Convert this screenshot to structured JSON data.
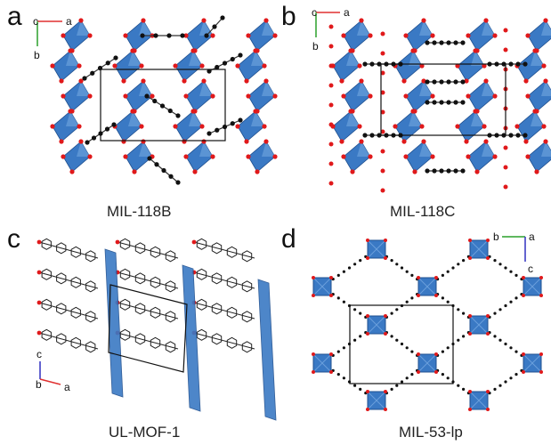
{
  "panels": [
    {
      "letter": "a",
      "name": "MIL-118B",
      "axes": {
        "first": "c",
        "second": "a",
        "third": "b"
      }
    },
    {
      "letter": "b",
      "name": "MIL-118C",
      "axes": {
        "first": "c",
        "second": "a",
        "third": "b"
      }
    },
    {
      "letter": "c",
      "name": "UL-MOF-1",
      "axes": {
        "first": "c",
        "second": "b",
        "third": "a"
      }
    },
    {
      "letter": "d",
      "name": "MIL-53-lp",
      "axes": {
        "first": "b",
        "second": "a",
        "third": "c"
      }
    }
  ],
  "colors": {
    "polyhedron": "#3a79c4",
    "polyhedron_dark": "#1f4f8f",
    "oxygen": "#e0191b",
    "carbon": "#111111",
    "axis_a": "#e03030",
    "axis_b": "#2aa02a",
    "axis_c": "#3030c0"
  }
}
